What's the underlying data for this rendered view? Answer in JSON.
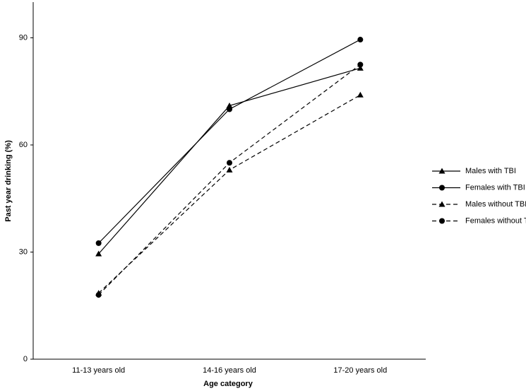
{
  "chart_data": {
    "type": "line",
    "x_label": "Age category",
    "y_label": "Past year drinking (%)",
    "categories": [
      "11-13 years old",
      "14-16 years old",
      "17-20 years old"
    ],
    "series": [
      {
        "name": "Males with TBI",
        "color": "#000000",
        "marker": "triangle",
        "dashed": false,
        "values": [
          29.5,
          71,
          81.5
        ]
      },
      {
        "name": "Females with TBI",
        "color": "#000000",
        "marker": "circle",
        "dashed": false,
        "values": [
          32.5,
          70,
          89.5
        ]
      },
      {
        "name": "Males without TBI",
        "color": "#000000",
        "marker": "triangle",
        "dashed": true,
        "values": [
          18.5,
          53,
          74
        ]
      },
      {
        "name": "Females without TBI",
        "color": "#000000",
        "marker": "circle",
        "dashed": true,
        "values": [
          18,
          55,
          82.5
        ]
      }
    ],
    "ylim": [
      0,
      100
    ],
    "yticks": [
      0,
      30,
      60,
      90
    ],
    "grid": false,
    "legend": "right"
  }
}
